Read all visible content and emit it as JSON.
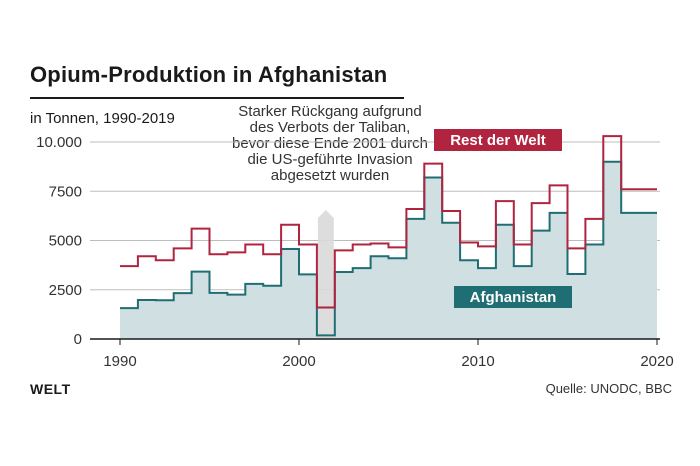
{
  "title": "Opium-Produktion in Afghanistan",
  "subtitle": "in Tonnen, 1990-2019",
  "annotation": "Starker Rückgang aufgrund des Verbots der Taliban, bevor diese Ende 2001 durch die US-geführte Invasion abgesetzt wurden",
  "brand": "WELT",
  "source": "Quelle: UNODC, BBC",
  "colors": {
    "afghanistan_line": "#1f6e73",
    "afghanistan_fill": "#cfdfe2",
    "world_line": "#b0243f",
    "highlight_band": "#d9d9d9",
    "grid": "#bdbdbd"
  },
  "chart_data": {
    "type": "area",
    "title": "Opium-Produktion in Afghanistan",
    "subtitle": "in Tonnen, 1990-2019",
    "xlabel": "",
    "ylabel": "",
    "x": [
      1990,
      1991,
      1992,
      1993,
      1994,
      1995,
      1996,
      1997,
      1998,
      1999,
      2000,
      2001,
      2002,
      2003,
      2004,
      2005,
      2006,
      2007,
      2008,
      2009,
      2010,
      2011,
      2012,
      2013,
      2014,
      2015,
      2016,
      2017,
      2018,
      2019
    ],
    "xlim": [
      1988,
      2020
    ],
    "ylim": [
      0,
      10000
    ],
    "x_ticks": [
      {
        "value": 1990,
        "label": "1990"
      },
      {
        "value": 2000,
        "label": "2000"
      },
      {
        "value": 2010,
        "label": "2010"
      },
      {
        "value": 2020,
        "label": "2020"
      }
    ],
    "y_ticks": [
      {
        "value": 0,
        "label": "0"
      },
      {
        "value": 2500,
        "label": "2500"
      },
      {
        "value": 5000,
        "label": "5000"
      },
      {
        "value": 7500,
        "label": "7500"
      },
      {
        "value": 10000,
        "label": "10.000"
      }
    ],
    "grid": true,
    "highlight_year": 2001,
    "series": [
      {
        "name": "Afghanistan",
        "role": "afghanistan",
        "values": [
          1570,
          1980,
          1970,
          2330,
          3420,
          2340,
          2250,
          2800,
          2700,
          4570,
          3280,
          185,
          3400,
          3600,
          4200,
          4100,
          6100,
          8200,
          5900,
          4000,
          3600,
          5800,
          3700,
          5500,
          6400,
          3300,
          4800,
          9000,
          6400,
          6400
        ]
      },
      {
        "name": "Rest der Welt",
        "role": "total",
        "values": [
          3700,
          4200,
          4000,
          4600,
          5600,
          4300,
          4400,
          4800,
          4300,
          5800,
          4800,
          1600,
          4500,
          4800,
          4850,
          4650,
          6600,
          8900,
          6500,
          4900,
          4700,
          7000,
          4800,
          6900,
          7800,
          4600,
          6100,
          10300,
          7600,
          7600
        ]
      }
    ]
  }
}
